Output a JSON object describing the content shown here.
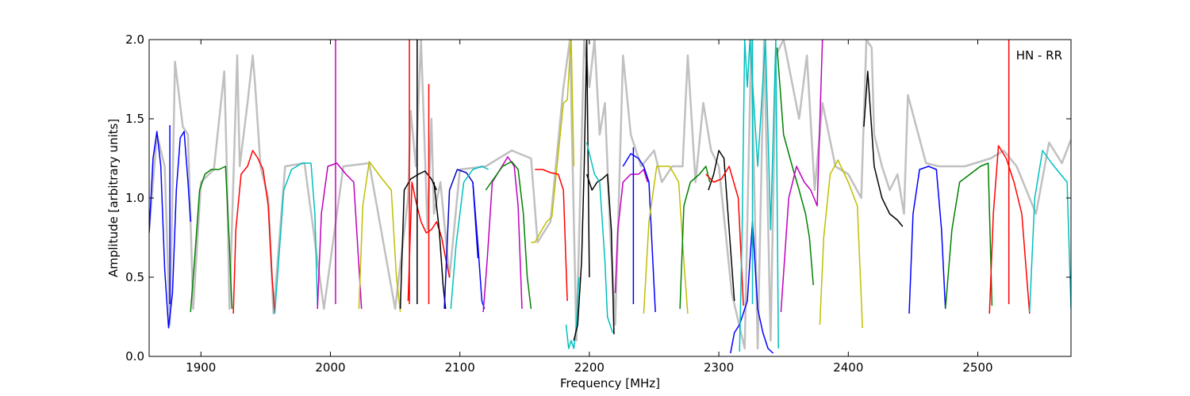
{
  "chart_data": {
    "type": "line",
    "title": "",
    "xlabel": "Frequency [MHz]",
    "ylabel": "Amplitude [arbitrary units]",
    "xlim": [
      1860,
      2572
    ],
    "ylim": [
      0.0,
      2.0
    ],
    "xticks": [
      1900,
      2000,
      2100,
      2200,
      2300,
      2400,
      2500
    ],
    "xtick_labels": [
      "1900",
      "2000",
      "2100",
      "2200",
      "2300",
      "2400",
      "2500"
    ],
    "yticks": [
      0.0,
      0.5,
      1.0,
      1.5,
      2.0
    ],
    "ytick_labels": [
      "0.0",
      "0.5",
      "1.0",
      "1.5",
      "2.0"
    ],
    "grid": false,
    "annotation": "HN - RR",
    "background_color": "#c0c0c0",
    "series": [
      {
        "color": "#0000ff",
        "x": [
          1860,
          1863,
          1866,
          1869,
          1872,
          1875,
          1878,
          1881,
          1884,
          1887,
          1890,
          1892
        ],
        "y": [
          0.78,
          1.25,
          1.42,
          1.2,
          0.55,
          0.18,
          0.4,
          1.05,
          1.38,
          1.42,
          1.1,
          0.85
        ]
      },
      {
        "color": "#008000",
        "x": [
          1892,
          1895,
          1899,
          1903,
          1908,
          1914,
          1919,
          1922,
          1924
        ],
        "y": [
          0.28,
          0.6,
          1.05,
          1.15,
          1.18,
          1.18,
          1.2,
          0.7,
          0.3
        ]
      },
      {
        "color": "#ff0000",
        "x": [
          1925,
          1927,
          1931,
          1936,
          1940,
          1944,
          1948,
          1952,
          1955,
          1957
        ],
        "y": [
          0.27,
          0.8,
          1.15,
          1.2,
          1.3,
          1.25,
          1.18,
          0.95,
          0.5,
          0.27
        ]
      },
      {
        "color": "#00bfbf",
        "x": [
          1957,
          1960,
          1964,
          1970,
          1978,
          1985,
          1988,
          1990
        ],
        "y": [
          0.27,
          0.6,
          1.05,
          1.18,
          1.22,
          1.22,
          0.9,
          0.32
        ]
      },
      {
        "color": "#bf00bf",
        "x": [
          1990,
          1993,
          1998,
          2005,
          2012,
          2018,
          2021,
          2024
        ],
        "y": [
          0.3,
          0.9,
          1.2,
          1.22,
          1.15,
          1.1,
          0.7,
          0.3
        ]
      },
      {
        "color": "#bfbf00",
        "x": [
          2022,
          2025,
          2030,
          2040,
          2047,
          2051,
          2054
        ],
        "y": [
          0.3,
          0.95,
          1.23,
          1.12,
          1.05,
          0.5,
          0.28
        ]
      },
      {
        "color": "#000000",
        "x": [
          2054,
          2057,
          2062,
          2068,
          2073,
          2078,
          2082
        ],
        "y": [
          0.3,
          1.05,
          1.12,
          1.15,
          1.17,
          1.12,
          1.05
        ]
      },
      {
        "color": "#ff0000",
        "x": [
          2060,
          2063,
          2066,
          2070,
          2074,
          2078,
          2082,
          2086,
          2089,
          2092
        ],
        "y": [
          0.35,
          1.1,
          0.98,
          0.85,
          0.78,
          0.8,
          0.85,
          0.75,
          0.62,
          0.5
        ]
      },
      {
        "color": "#000000",
        "x": [
          2080,
          2084,
          2087,
          2089
        ],
        "y": [
          1.1,
          0.8,
          0.45,
          0.3
        ]
      },
      {
        "color": "#0000bf",
        "x": [
          2088,
          2092,
          2098,
          2105,
          2110,
          2114
        ],
        "y": [
          0.3,
          1.05,
          1.18,
          1.16,
          1.1,
          0.62
        ]
      },
      {
        "color": "#00bfbf",
        "x": [
          2093,
          2097,
          2103,
          2110,
          2117,
          2122
        ],
        "y": [
          0.3,
          0.7,
          1.1,
          1.18,
          1.2,
          1.18
        ]
      },
      {
        "color": "#0000ff",
        "x": [
          2110,
          2114,
          2117,
          2119
        ],
        "y": [
          1.1,
          0.7,
          0.35,
          0.3
        ]
      },
      {
        "color": "#bf00bf",
        "x": [
          2118,
          2121,
          2125,
          2131,
          2137,
          2142,
          2145,
          2148
        ],
        "y": [
          0.28,
          0.6,
          1.1,
          1.18,
          1.26,
          1.2,
          0.95,
          0.3
        ]
      },
      {
        "color": "#008000",
        "x": [
          2120,
          2126,
          2133,
          2140,
          2145
        ],
        "y": [
          1.05,
          1.12,
          1.2,
          1.23,
          1.18
        ]
      },
      {
        "color": "#008000",
        "x": [
          2145,
          2149,
          2152,
          2155
        ],
        "y": [
          1.18,
          0.9,
          0.5,
          0.3
        ]
      },
      {
        "color": "#bfbf00",
        "x": [
          2155,
          2158,
          2162,
          2167,
          2171,
          2175,
          2180
        ],
        "y": [
          0.72,
          0.72,
          0.78,
          0.85,
          0.88,
          1.2,
          1.6
        ]
      },
      {
        "color": "#ff0000",
        "x": [
          2158,
          2164,
          2170,
          2176,
          2180,
          2183
        ],
        "y": [
          1.18,
          1.18,
          1.16,
          1.15,
          1.05,
          0.35
        ]
      },
      {
        "color": "#00bfbf",
        "x": [
          2182,
          2184,
          2186,
          2188,
          2190,
          2192
        ],
        "y": [
          0.2,
          0.05,
          0.1,
          0.05,
          0.2,
          0.5
        ]
      },
      {
        "color": "#bfbf00",
        "x": [
          2180,
          2183,
          2185,
          2186,
          2188
        ],
        "y": [
          1.6,
          1.62,
          1.9,
          2.0,
          1.2
        ]
      },
      {
        "color": "#000000",
        "x": [
          2188,
          2191,
          2194,
          2196,
          2198,
          2200
        ],
        "y": [
          0.1,
          0.2,
          0.6,
          1.2,
          2.0,
          0.5
        ]
      },
      {
        "color": "#000000",
        "x": [
          2198,
          2202,
          2206,
          2210,
          2214,
          2217,
          2219
        ],
        "y": [
          1.15,
          1.05,
          1.1,
          1.12,
          1.15,
          0.8,
          0.14
        ]
      },
      {
        "color": "#00bfbf",
        "x": [
          2198,
          2204,
          2208,
          2212,
          2214,
          2218
        ],
        "y": [
          1.35,
          1.15,
          1.1,
          0.6,
          0.25,
          0.15
        ]
      },
      {
        "color": "#bf00bf",
        "x": [
          2220,
          2222,
          2226,
          2232,
          2238,
          2242,
          2245
        ],
        "y": [
          0.4,
          0.8,
          1.1,
          1.15,
          1.15,
          1.18,
          1.1
        ]
      },
      {
        "color": "#0000ff",
        "x": [
          2226,
          2232,
          2238,
          2242,
          2246,
          2249,
          2251
        ],
        "y": [
          1.2,
          1.28,
          1.25,
          1.2,
          1.1,
          0.6,
          0.28
        ]
      },
      {
        "color": "#bfbf00",
        "x": [
          2242,
          2246,
          2252,
          2262,
          2269,
          2273,
          2276
        ],
        "y": [
          0.27,
          0.85,
          1.2,
          1.2,
          1.1,
          0.6,
          0.27
        ]
      },
      {
        "color": "#008000",
        "x": [
          2270,
          2273,
          2278,
          2285,
          2290,
          2293
        ],
        "y": [
          0.3,
          0.95,
          1.1,
          1.15,
          1.2,
          1.1
        ]
      },
      {
        "color": "#000000",
        "x": [
          2292,
          2296,
          2300,
          2304,
          2308,
          2312
        ],
        "y": [
          1.05,
          1.15,
          1.3,
          1.25,
          0.8,
          0.35
        ]
      },
      {
        "color": "#ff0000",
        "x": [
          2290,
          2296,
          2302,
          2308,
          2315,
          2319
        ],
        "y": [
          1.15,
          1.1,
          1.12,
          1.2,
          1.0,
          0.32
        ]
      },
      {
        "color": "#0000ff",
        "x": [
          2309,
          2312,
          2316,
          2322,
          2326,
          2330,
          2334,
          2338,
          2342
        ],
        "y": [
          0.02,
          0.15,
          0.2,
          0.35,
          0.85,
          0.3,
          0.15,
          0.05,
          0.02
        ]
      },
      {
        "color": "#00bfbf",
        "x": [
          2316,
          2318,
          2320,
          2322,
          2324,
          2330,
          2336,
          2340,
          2344,
          2346
        ],
        "y": [
          0.03,
          0.8,
          2.0,
          1.7,
          2.0,
          1.2,
          2.0,
          0.8,
          2.0,
          0.05
        ]
      },
      {
        "color": "#008000",
        "x": [
          2345,
          2350,
          2356,
          2362,
          2367,
          2370,
          2373
        ],
        "y": [
          1.95,
          1.4,
          1.22,
          1.05,
          0.9,
          0.75,
          0.45
        ]
      },
      {
        "color": "#bf00bf",
        "x": [
          2348,
          2354,
          2360,
          2366,
          2371,
          2376,
          2380
        ],
        "y": [
          0.28,
          1.0,
          1.2,
          1.1,
          1.05,
          0.95,
          2.0
        ]
      },
      {
        "color": "#bfbf00",
        "x": [
          2378,
          2381,
          2386,
          2392,
          2400,
          2407,
          2411
        ],
        "y": [
          0.2,
          0.75,
          1.15,
          1.24,
          1.1,
          0.95,
          0.18
        ]
      },
      {
        "color": "#000000",
        "x": [
          2412,
          2415,
          2420,
          2426,
          2432,
          2438,
          2442
        ],
        "y": [
          1.45,
          1.8,
          1.2,
          1.0,
          0.9,
          0.86,
          0.82
        ]
      },
      {
        "color": "#0000ff",
        "x": [
          2447,
          2450,
          2455,
          2462,
          2468,
          2472,
          2475
        ],
        "y": [
          0.27,
          0.9,
          1.18,
          1.2,
          1.18,
          0.8,
          0.3
        ]
      },
      {
        "color": "#008000",
        "x": [
          2475,
          2480,
          2486,
          2494,
          2502,
          2508,
          2511
        ],
        "y": [
          0.3,
          0.8,
          1.1,
          1.15,
          1.2,
          1.22,
          0.32
        ]
      },
      {
        "color": "#ff0000",
        "x": [
          2509,
          2512,
          2516,
          2522,
          2528,
          2534,
          2540
        ],
        "y": [
          0.27,
          0.9,
          1.33,
          1.25,
          1.1,
          0.9,
          0.27
        ]
      },
      {
        "color": "#00bfbf",
        "x": [
          2540,
          2544,
          2550,
          2557,
          2564,
          2569,
          2572
        ],
        "y": [
          0.28,
          1.0,
          1.3,
          1.22,
          1.15,
          1.1,
          0.3
        ]
      }
    ],
    "spikes": [
      {
        "color": "#ff0000",
        "x": 2061,
        "y": 2.0
      },
      {
        "color": "#000000",
        "x": 2067,
        "y": 2.0
      },
      {
        "color": "#ff0000",
        "x": 2076,
        "y": 1.72
      },
      {
        "color": "#bf00bf",
        "x": 2004,
        "y": 2.0
      },
      {
        "color": "#0000ff",
        "x": 1876,
        "y": 1.46
      },
      {
        "color": "#ff0000",
        "x": 2524,
        "y": 2.0
      },
      {
        "color": "#00bfbf",
        "x": 2326,
        "y": 2.0
      },
      {
        "color": "#0000ff",
        "x": 2234,
        "y": 1.32
      }
    ],
    "reference_line": {
      "color": "#c0c0c0",
      "x": [
        1860,
        1866,
        1872,
        1876,
        1880,
        1886,
        1890,
        1894,
        1900,
        1910,
        1918,
        1920,
        1922,
        1928,
        1930,
        1936,
        1940,
        1942,
        1946,
        1952,
        1956,
        1965,
        1980,
        1995,
        2010,
        2030,
        2050,
        2060,
        2062,
        2066,
        2070,
        2075,
        2078,
        2080,
        2085,
        2092,
        2100,
        2120,
        2140,
        2155,
        2160,
        2170,
        2180,
        2185,
        2190,
        2196,
        2200,
        2204,
        2208,
        2212,
        2216,
        2220,
        2226,
        2232,
        2240,
        2250,
        2256,
        2264,
        2272,
        2276,
        2282,
        2288,
        2294,
        2300,
        2310,
        2320,
        2325,
        2330,
        2335,
        2340,
        2344,
        2350,
        2356,
        2362,
        2368,
        2374,
        2380,
        2390,
        2400,
        2410,
        2414,
        2418,
        2420,
        2426,
        2432,
        2438,
        2443,
        2446,
        2460,
        2470,
        2490,
        2510,
        2520,
        2530,
        2545,
        2555,
        2565,
        2572
      ],
      "y": [
        0.8,
        1.4,
        1.2,
        0.2,
        1.86,
        1.45,
        1.4,
        0.3,
        1.1,
        1.18,
        1.8,
        1.2,
        0.3,
        1.9,
        1.2,
        1.6,
        1.9,
        1.7,
        1.2,
        1.0,
        0.27,
        1.2,
        1.22,
        0.3,
        1.2,
        1.22,
        0.3,
        1.0,
        1.55,
        1.2,
        2.0,
        0.8,
        1.5,
        0.9,
        1.1,
        0.5,
        1.18,
        1.2,
        1.3,
        1.25,
        0.72,
        0.85,
        1.7,
        2.0,
        0.1,
        2.0,
        1.7,
        2.0,
        1.4,
        1.6,
        0.8,
        0.2,
        1.9,
        1.4,
        1.2,
        1.3,
        1.1,
        1.2,
        1.2,
        1.9,
        1.1,
        1.6,
        1.3,
        1.2,
        0.4,
        0.05,
        2.0,
        0.05,
        2.0,
        0.1,
        1.9,
        2.0,
        1.75,
        1.5,
        1.9,
        1.05,
        1.6,
        1.2,
        1.15,
        1.0,
        2.0,
        1.95,
        1.4,
        1.2,
        1.05,
        1.15,
        0.9,
        1.65,
        1.22,
        1.2,
        1.2,
        1.25,
        1.3,
        1.2,
        0.9,
        1.35,
        1.22,
        1.37
      ]
    }
  }
}
